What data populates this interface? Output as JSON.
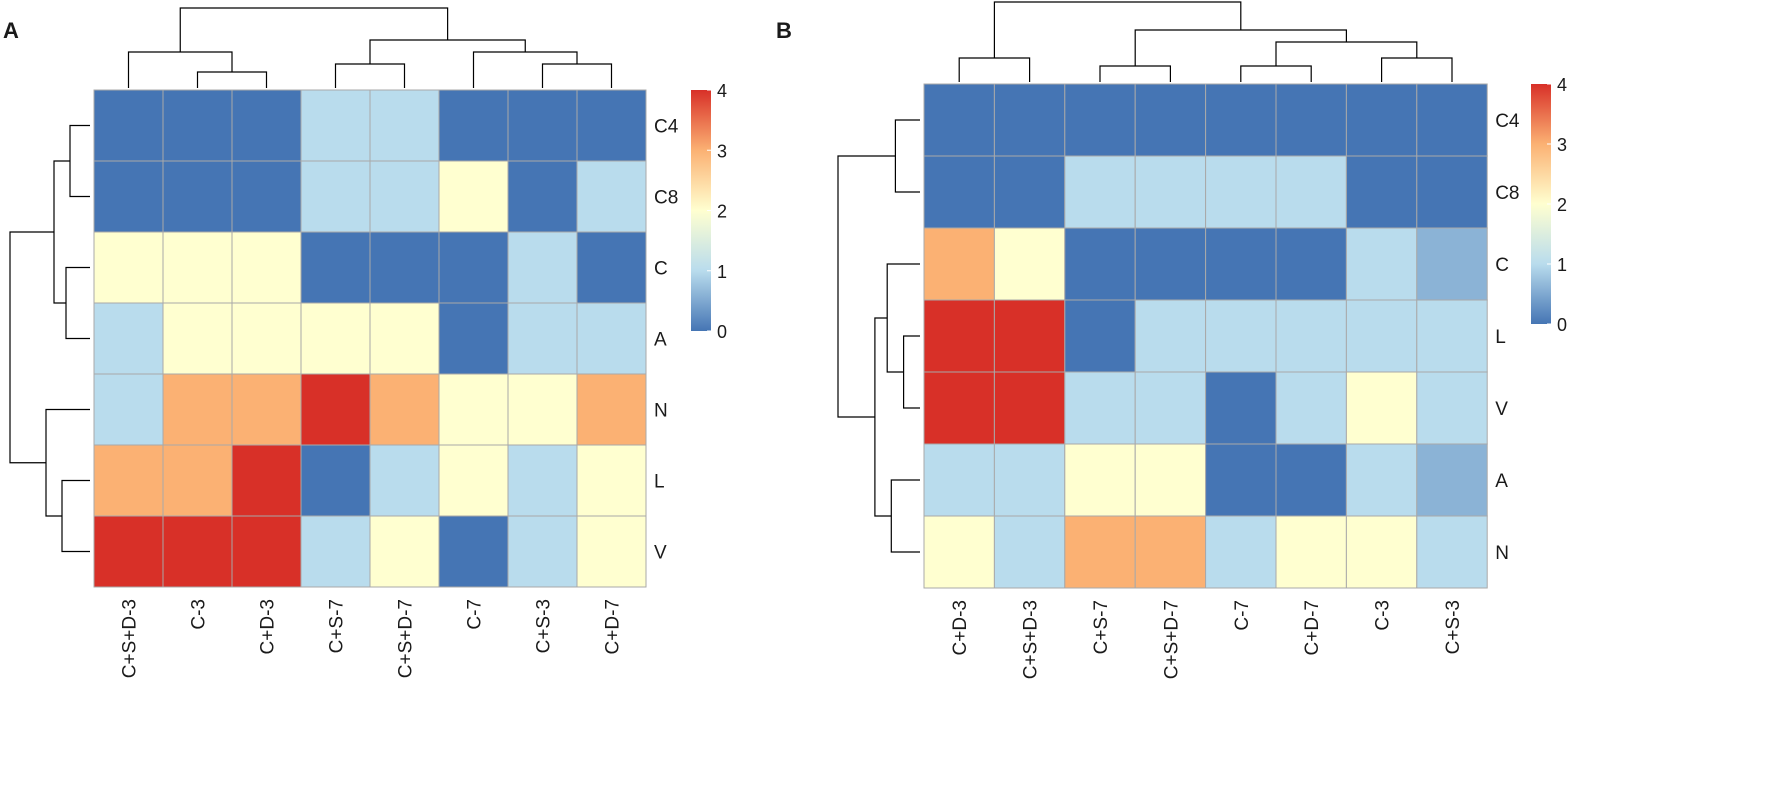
{
  "chart_data": [
    {
      "type": "heatmap",
      "panel_label": "A",
      "columns": [
        "C+S+D-3",
        "C-3",
        "C+D-3",
        "C+S-7",
        "C+S+D-7",
        "C-7",
        "C+S-3",
        "C+D-7"
      ],
      "rows": [
        "C4",
        "C8",
        "C",
        "A",
        "N",
        "L",
        "V"
      ],
      "values": [
        [
          0,
          0,
          0,
          1,
          1,
          0,
          0,
          0
        ],
        [
          0,
          0,
          0,
          1,
          1,
          2,
          0,
          1
        ],
        [
          2,
          2,
          2,
          0,
          0,
          0,
          1,
          0
        ],
        [
          1,
          2,
          2,
          2,
          2,
          0,
          1,
          1
        ],
        [
          1,
          3,
          3,
          4,
          3,
          2,
          2,
          3
        ],
        [
          3,
          3,
          4,
          0,
          1,
          2,
          1,
          2
        ],
        [
          4,
          4,
          4,
          1,
          2,
          0,
          1,
          2
        ]
      ],
      "legend": {
        "min": 0,
        "max": 4,
        "ticks": [
          "0",
          "1",
          "2",
          "3",
          "4"
        ]
      },
      "row_dendrogram": [
        [
          0,
          1,
          0.25
        ],
        [
          2,
          3,
          0.3
        ],
        [
          0,
          2,
          0.45
        ],
        [
          5,
          6,
          0.35
        ],
        [
          4,
          5,
          0.55
        ],
        [
          0,
          4,
          1.0
        ]
      ],
      "col_dendrogram": [
        [
          1,
          2,
          0.2
        ],
        [
          0,
          1,
          0.45
        ],
        [
          3,
          4,
          0.3
        ],
        [
          6,
          7,
          0.3
        ],
        [
          5,
          6,
          0.45
        ],
        [
          3,
          5,
          0.6
        ],
        [
          0,
          3,
          1.0
        ]
      ]
    },
    {
      "type": "heatmap",
      "panel_label": "B",
      "columns": [
        "C+D-3",
        "C+S+D-3",
        "C+S-7",
        "C+S+D-7",
        "C-7",
        "C+D-7",
        "C-3",
        "C+S-3"
      ],
      "rows": [
        "C4",
        "C8",
        "C",
        "L",
        "V",
        "A",
        "N"
      ],
      "values": [
        [
          0,
          0,
          0,
          0,
          0,
          0,
          0,
          0
        ],
        [
          0,
          0,
          1,
          1,
          1,
          1,
          0,
          0
        ],
        [
          3,
          2,
          0,
          0,
          0,
          0,
          1,
          0.6
        ],
        [
          4,
          4,
          0,
          1,
          1,
          1,
          1,
          1
        ],
        [
          4,
          4,
          1,
          1,
          0,
          1,
          2,
          1
        ],
        [
          1,
          1,
          2,
          2,
          0,
          0,
          1,
          0.6
        ],
        [
          2,
          1,
          3,
          3,
          1,
          2,
          2,
          1
        ]
      ],
      "legend": {
        "min": 0,
        "max": 4,
        "ticks": [
          "0",
          "1",
          "2",
          "3",
          "4"
        ]
      },
      "row_dendrogram": [
        [
          0,
          1,
          0.3
        ],
        [
          3,
          4,
          0.2
        ],
        [
          2,
          3,
          0.4
        ],
        [
          5,
          6,
          0.35
        ],
        [
          2,
          5,
          0.55
        ],
        [
          0,
          2,
          1.0
        ]
      ],
      "col_dendrogram": [
        [
          0,
          1,
          0.3
        ],
        [
          2,
          3,
          0.2
        ],
        [
          4,
          5,
          0.2
        ],
        [
          6,
          7,
          0.3
        ],
        [
          4,
          6,
          0.5
        ],
        [
          2,
          4,
          0.65
        ],
        [
          0,
          2,
          1.0
        ]
      ]
    }
  ]
}
